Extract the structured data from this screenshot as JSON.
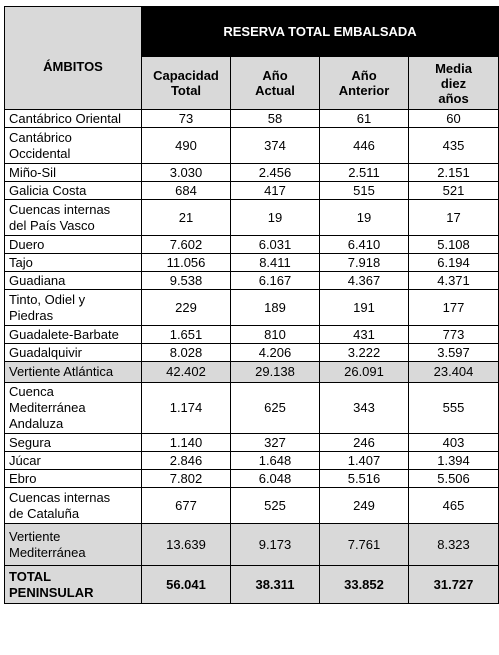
{
  "header": {
    "ambitos": "ÁMBITOS",
    "group": "RESERVA TOTAL EMBALSADA",
    "col1": [
      "Capacidad",
      "Total"
    ],
    "col2": [
      "Año",
      "Actual"
    ],
    "col3": [
      "Año",
      "Anterior"
    ],
    "col4": [
      "Media",
      "diez",
      "años"
    ]
  },
  "rows": [
    {
      "name": [
        "Cantábrico Oriental"
      ],
      "values": [
        "73",
        "58",
        "61",
        "60"
      ],
      "kind": "normal"
    },
    {
      "name": [
        "Cantábrico",
        "Occidental"
      ],
      "values": [
        "490",
        "374",
        "446",
        "435"
      ],
      "kind": "normal"
    },
    {
      "name": [
        "Miño-Sil"
      ],
      "values": [
        "3.030",
        "2.456",
        "2.511",
        "2.151"
      ],
      "kind": "normal"
    },
    {
      "name": [
        "Galicia Costa"
      ],
      "values": [
        "684",
        "417",
        "515",
        "521"
      ],
      "kind": "normal"
    },
    {
      "name": [
        "Cuencas internas",
        "del País Vasco"
      ],
      "values": [
        "21",
        "19",
        "19",
        "17"
      ],
      "kind": "normal"
    },
    {
      "name": [
        "Duero"
      ],
      "values": [
        "7.602",
        "6.031",
        "6.410",
        "5.108"
      ],
      "kind": "normal"
    },
    {
      "name": [
        "Tajo"
      ],
      "values": [
        "11.056",
        "8.411",
        "7.918",
        "6.194"
      ],
      "kind": "normal"
    },
    {
      "name": [
        "Guadiana"
      ],
      "values": [
        "9.538",
        "6.167",
        "4.367",
        "4.371"
      ],
      "kind": "normal"
    },
    {
      "name": [
        "Tinto, Odiel y",
        "Piedras"
      ],
      "values": [
        "229",
        "189",
        "191",
        "177"
      ],
      "kind": "normal"
    },
    {
      "name": [
        "Guadalete-Barbate"
      ],
      "values": [
        "1.651",
        "810",
        "431",
        "773"
      ],
      "kind": "normal"
    },
    {
      "name": [
        "Guadalquivir"
      ],
      "values": [
        "8.028",
        "4.206",
        "3.222",
        "3.597"
      ],
      "kind": "normal"
    },
    {
      "name": [
        "Vertiente Atlántica"
      ],
      "values": [
        "42.402",
        "29.138",
        "26.091",
        "23.404"
      ],
      "kind": "sub"
    },
    {
      "name": [
        "Cuenca",
        "Mediterránea",
        "Andaluza"
      ],
      "values": [
        "1.174",
        "625",
        "343",
        "555"
      ],
      "kind": "normal"
    },
    {
      "name": [
        "Segura"
      ],
      "values": [
        "1.140",
        "327",
        "246",
        "403"
      ],
      "kind": "normal"
    },
    {
      "name": [
        "Júcar"
      ],
      "values": [
        "2.846",
        "1.648",
        "1.407",
        "1.394"
      ],
      "kind": "normal"
    },
    {
      "name": [
        "Ebro"
      ],
      "values": [
        "7.802",
        "6.048",
        "5.516",
        "5.506"
      ],
      "kind": "normal"
    },
    {
      "name": [
        "Cuencas internas",
        "de Cataluña"
      ],
      "values": [
        "677",
        "525",
        "249",
        "465"
      ],
      "kind": "normal"
    },
    {
      "name": [
        "Vertiente",
        "Mediterránea"
      ],
      "values": [
        "13.639",
        "9.173",
        "7.761",
        "8.323"
      ],
      "kind": "sub"
    },
    {
      "name": [
        "TOTAL",
        "PENINSULAR"
      ],
      "values": [
        "56.041",
        "38.311",
        "33.852",
        "31.727"
      ],
      "kind": "total"
    }
  ]
}
